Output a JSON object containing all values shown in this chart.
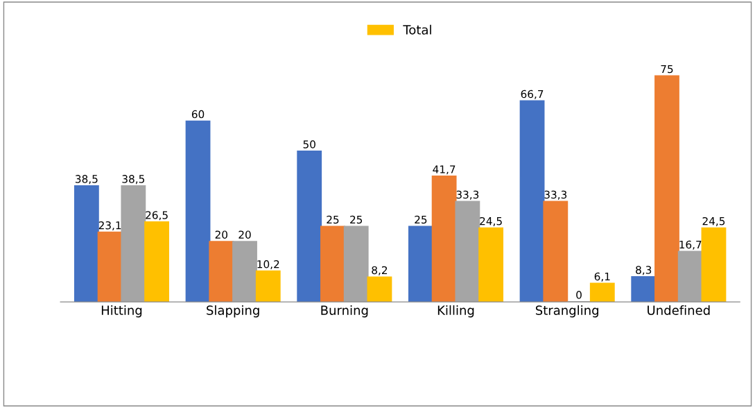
{
  "chart_data": {
    "type": "bar",
    "categories": [
      "Hitting",
      "Slapping",
      "Burning",
      "Killing",
      "Strangling",
      "Undefined"
    ],
    "series": [
      {
        "color": "#4472c4",
        "values": [
          38.5,
          60,
          50,
          25,
          66.7,
          8.3
        ],
        "value_labels": [
          "38,5",
          "60",
          "50",
          "25",
          "66,7",
          "8,3"
        ]
      },
      {
        "color": "#ed7d31",
        "values": [
          23.1,
          20,
          25,
          41.7,
          33.3,
          75
        ],
        "value_labels": [
          "23,1",
          "20",
          "25",
          "41,7",
          "33,3",
          "75"
        ]
      },
      {
        "color": "#a5a5a5",
        "values": [
          38.5,
          20,
          25,
          33.3,
          0,
          16.7
        ],
        "value_labels": [
          "38,5",
          "20",
          "25",
          "33,3",
          "0",
          "16,7"
        ]
      },
      {
        "name": "Total",
        "color": "#ffc000",
        "values": [
          26.5,
          10.2,
          8.2,
          24.5,
          6.1,
          24.5
        ],
        "value_labels": [
          "26,5",
          "10,2",
          "8,2",
          "24,5",
          "6,1",
          "24,5"
        ]
      }
    ],
    "legend": "top",
    "grid": false,
    "tick_labels": "x"
  }
}
